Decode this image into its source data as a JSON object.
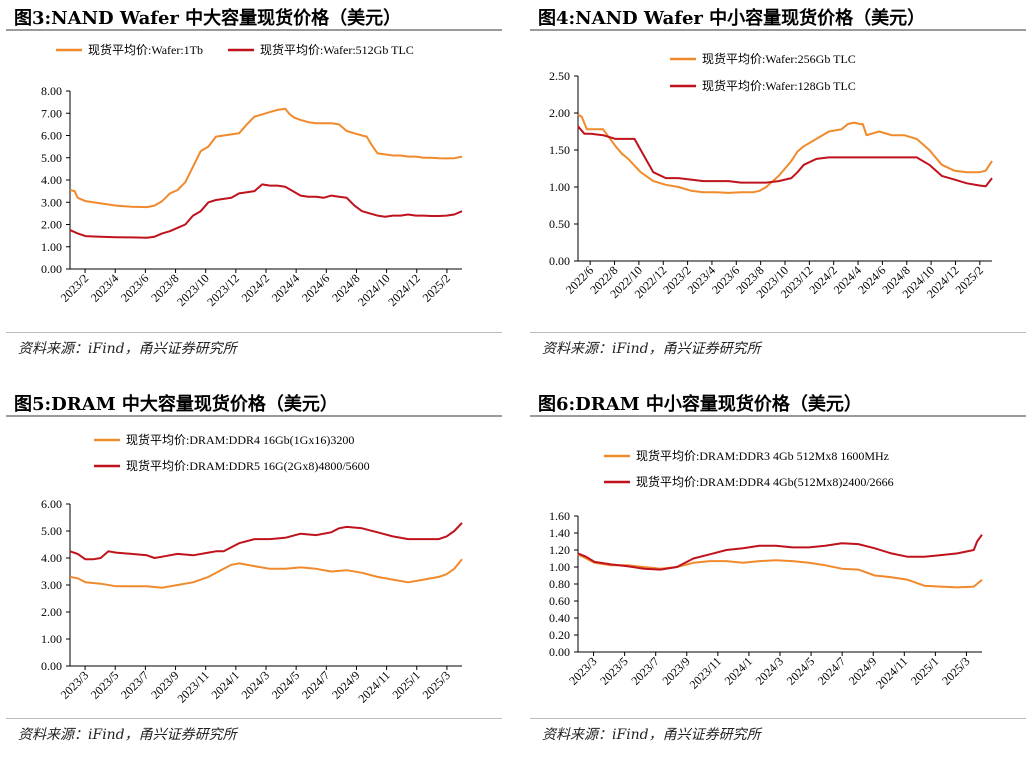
{
  "colors": {
    "orange": "#f08a2c",
    "red": "#c0121c",
    "axis": "#000000"
  },
  "chart_data": [
    {
      "type": "line",
      "title": "图3:NAND Wafer 中大容量现货价格（美元）",
      "source": "资料来源：iFind，甬兴证券研究所",
      "x_ticks": [
        "2023/2",
        "2023/4",
        "2023/6",
        "2023/8",
        "2023/10",
        "2023/12",
        "2024/2",
        "2024/4",
        "2024/6",
        "2024/8",
        "2024/10",
        "2024/12",
        "2025/2"
      ],
      "x_range": [
        0,
        25.5
      ],
      "ylim": [
        0,
        8
      ],
      "y_ticks": [
        "0.00",
        "1.00",
        "2.00",
        "3.00",
        "4.00",
        "5.00",
        "6.00",
        "7.00",
        "8.00"
      ],
      "legend_layout": "row",
      "series": [
        {
          "name": "现货平均价:Wafer:1Tb",
          "color": "#f08a2c",
          "x": [
            0,
            0.3,
            0.5,
            1,
            2,
            3,
            4,
            5,
            5.5,
            6,
            6.5,
            7,
            7.5,
            8,
            8.5,
            9,
            9.5,
            10,
            10.5,
            11,
            11.5,
            12,
            12.5,
            13,
            13.5,
            14,
            14.3,
            14.6,
            15,
            15.5,
            16,
            16.5,
            17,
            17.5,
            18,
            18.5,
            19,
            19.3,
            19.6,
            20,
            20.5,
            21,
            21.5,
            22,
            22.5,
            23,
            23.5,
            24,
            24.5,
            25,
            25.5
          ],
          "values": [
            3.55,
            3.5,
            3.2,
            3.05,
            2.95,
            2.85,
            2.8,
            2.78,
            2.85,
            3.05,
            3.4,
            3.55,
            3.9,
            4.6,
            5.3,
            5.5,
            5.95,
            6.0,
            6.05,
            6.1,
            6.5,
            6.85,
            6.95,
            7.05,
            7.15,
            7.2,
            6.95,
            6.8,
            6.7,
            6.6,
            6.55,
            6.55,
            6.55,
            6.5,
            6.2,
            6.1,
            6.0,
            5.95,
            5.6,
            5.2,
            5.15,
            5.1,
            5.1,
            5.05,
            5.05,
            5.0,
            5.0,
            4.98,
            4.97,
            4.98,
            5.05
          ]
        },
        {
          "name": "现货平均价:Wafer:512Gb TLC",
          "color": "#c0121c",
          "x": [
            0,
            0.5,
            1,
            2,
            3,
            4,
            5,
            5.5,
            6,
            6.5,
            7,
            7.5,
            8,
            8.5,
            9,
            9.5,
            10,
            10.5,
            11,
            11.5,
            12,
            12.5,
            13,
            13.5,
            14,
            14.5,
            15,
            15.5,
            16,
            16.5,
            17,
            17.5,
            18,
            18.5,
            19,
            19.5,
            20,
            20.5,
            21,
            21.5,
            22,
            22.5,
            23,
            23.5,
            24,
            24.5,
            25,
            25.5
          ],
          "values": [
            1.75,
            1.6,
            1.48,
            1.45,
            1.43,
            1.42,
            1.4,
            1.45,
            1.6,
            1.7,
            1.85,
            2.0,
            2.4,
            2.6,
            3.0,
            3.1,
            3.15,
            3.2,
            3.4,
            3.45,
            3.5,
            3.8,
            3.75,
            3.75,
            3.7,
            3.5,
            3.3,
            3.25,
            3.25,
            3.2,
            3.3,
            3.25,
            3.2,
            2.85,
            2.6,
            2.5,
            2.4,
            2.35,
            2.4,
            2.4,
            2.45,
            2.4,
            2.4,
            2.38,
            2.38,
            2.4,
            2.45,
            2.6
          ]
        }
      ]
    },
    {
      "type": "line",
      "title": "图4:NAND Wafer 中小容量现货价格（美元）",
      "source": "资料来源：iFind，甬兴证券研究所",
      "x_ticks": [
        "2022/6",
        "2022/8",
        "2022/10",
        "2022/12",
        "2023/2",
        "2023/4",
        "2023/6",
        "2023/8",
        "2023/10",
        "2023/12",
        "2024/2",
        "2024/4",
        "2024/6",
        "2024/8",
        "2024/10",
        "2024/12",
        "2025/2"
      ],
      "x_range": [
        0,
        33
      ],
      "ylim": [
        0,
        2.5
      ],
      "y_ticks": [
        "0.00",
        "0.50",
        "1.00",
        "1.50",
        "2.00",
        "2.50"
      ],
      "legend_layout": "stack",
      "series": [
        {
          "name": "现货平均价:Wafer:256Gb TLC",
          "color": "#f08a2c",
          "x": [
            0,
            0.3,
            0.7,
            1,
            2,
            3,
            3.5,
            4,
            5,
            6,
            7,
            8,
            9,
            10,
            11,
            12,
            13,
            14,
            14.5,
            15,
            16,
            17,
            17.5,
            18,
            19,
            20,
            21,
            21.5,
            22,
            22.5,
            22.7,
            23,
            24,
            25,
            26,
            27,
            28,
            29,
            30,
            31,
            32,
            32.5,
            33
          ],
          "values": [
            1.98,
            1.95,
            1.78,
            1.78,
            1.78,
            1.55,
            1.45,
            1.38,
            1.2,
            1.08,
            1.03,
            1.0,
            0.95,
            0.93,
            0.93,
            0.92,
            0.93,
            0.93,
            0.95,
            1.0,
            1.15,
            1.35,
            1.48,
            1.55,
            1.65,
            1.75,
            1.78,
            1.85,
            1.87,
            1.85,
            1.85,
            1.7,
            1.75,
            1.7,
            1.7,
            1.65,
            1.5,
            1.3,
            1.22,
            1.2,
            1.2,
            1.22,
            1.35
          ]
        },
        {
          "name": "现货平均价:Wafer:128Gb TLC",
          "color": "#c0121c",
          "x": [
            0,
            0.5,
            1,
            2,
            3,
            4,
            4.5,
            5,
            6,
            7,
            8,
            9,
            10,
            11,
            12,
            13,
            14,
            15,
            16,
            17,
            17.5,
            18,
            19,
            20,
            21,
            22,
            23,
            24,
            25,
            26,
            27,
            28,
            29,
            30,
            31,
            32,
            32.5,
            33
          ],
          "values": [
            1.82,
            1.72,
            1.72,
            1.7,
            1.65,
            1.65,
            1.65,
            1.5,
            1.2,
            1.12,
            1.12,
            1.1,
            1.08,
            1.08,
            1.08,
            1.06,
            1.06,
            1.06,
            1.08,
            1.12,
            1.2,
            1.3,
            1.38,
            1.4,
            1.4,
            1.4,
            1.4,
            1.4,
            1.4,
            1.4,
            1.4,
            1.3,
            1.15,
            1.1,
            1.05,
            1.02,
            1.01,
            1.12
          ]
        }
      ]
    },
    {
      "type": "line",
      "title": "图5:DRAM 中大容量现货价格（美元）",
      "source": "资料来源：iFind，甬兴证券研究所",
      "x_ticks": [
        "2023/3",
        "2023/5",
        "2023/7",
        "2023/9",
        "2023/11",
        "2024/1",
        "2024/3",
        "2024/5",
        "2024/7",
        "2024/9",
        "2024/11",
        "2025/1",
        "2025/3"
      ],
      "x_range": [
        0,
        25.5
      ],
      "ylim": [
        0,
        6
      ],
      "y_ticks": [
        "0.00",
        "1.00",
        "2.00",
        "3.00",
        "4.00",
        "5.00",
        "6.00"
      ],
      "legend_layout": "stack",
      "series": [
        {
          "name": "现货平均价:DRAM:DDR4 16Gb(1Gx16)3200",
          "color": "#f08a2c",
          "x": [
            0,
            0.5,
            1,
            2,
            3,
            4,
            5,
            6,
            7,
            8,
            9,
            10,
            10.5,
            11,
            12,
            13,
            14,
            15,
            16,
            17,
            18,
            19,
            20,
            21,
            22,
            23,
            24,
            24.5,
            25,
            25.5
          ],
          "values": [
            3.3,
            3.25,
            3.1,
            3.05,
            2.95,
            2.95,
            2.95,
            2.9,
            3.0,
            3.1,
            3.3,
            3.6,
            3.75,
            3.8,
            3.7,
            3.6,
            3.6,
            3.65,
            3.6,
            3.5,
            3.55,
            3.45,
            3.3,
            3.2,
            3.1,
            3.2,
            3.3,
            3.4,
            3.6,
            3.95
          ]
        },
        {
          "name": "现货平均价:DRAM:DDR5 16G(2Gx8)4800/5600",
          "color": "#c0121c",
          "x": [
            0,
            0.5,
            1,
            1.5,
            2,
            2.5,
            3,
            4,
            5,
            5.5,
            6,
            7,
            8,
            9,
            9.5,
            10,
            11,
            12,
            13,
            14,
            15,
            16,
            17,
            17.5,
            18,
            19,
            20,
            21,
            22,
            23,
            24,
            24.5,
            25,
            25.5
          ],
          "values": [
            4.25,
            4.15,
            3.95,
            3.95,
            4.0,
            4.25,
            4.2,
            4.15,
            4.1,
            4.0,
            4.05,
            4.15,
            4.1,
            4.2,
            4.25,
            4.25,
            4.55,
            4.7,
            4.7,
            4.75,
            4.9,
            4.85,
            4.95,
            5.1,
            5.15,
            5.1,
            4.95,
            4.8,
            4.7,
            4.7,
            4.7,
            4.8,
            5.0,
            5.3
          ]
        }
      ]
    },
    {
      "type": "line",
      "title": "图6:DRAM 中小容量现货价格（美元）",
      "source": "资料来源：iFind，甬兴证券研究所",
      "x_ticks": [
        "2023/3",
        "2023/5",
        "2023/7",
        "2023/9",
        "2023/11",
        "2024/1",
        "2024/3",
        "2024/5",
        "2024/7",
        "2024/9",
        "2024/11",
        "2025/1",
        "2025/3"
      ],
      "x_range": [
        0,
        24.5
      ],
      "ylim": [
        0,
        1.6
      ],
      "y_ticks": [
        "0.00",
        "0.20",
        "0.40",
        "0.60",
        "0.80",
        "1.00",
        "1.20",
        "1.40",
        "1.60"
      ],
      "legend_layout": "stack",
      "series": [
        {
          "name": "现货平均价:DRAM:DDR3 4Gb 512Mx8 1600MHz",
          "color": "#f08a2c",
          "x": [
            0,
            0.5,
            1,
            2,
            3,
            4,
            5,
            6,
            7,
            8,
            9,
            10,
            11,
            12,
            13,
            14,
            15,
            16,
            17,
            18,
            19,
            20,
            21,
            22,
            23,
            24,
            24.5
          ],
          "values": [
            1.15,
            1.1,
            1.05,
            1.02,
            1.02,
            1.0,
            0.98,
            1.0,
            1.05,
            1.07,
            1.07,
            1.05,
            1.07,
            1.08,
            1.07,
            1.05,
            1.02,
            0.98,
            0.97,
            0.9,
            0.88,
            0.85,
            0.78,
            0.77,
            0.76,
            0.77,
            0.85
          ]
        },
        {
          "name": "现货平均价:DRAM:DDR4 4Gb(512Mx8)2400/2666",
          "color": "#c0121c",
          "x": [
            0,
            0.5,
            1,
            2,
            3,
            4,
            5,
            6,
            7,
            8,
            9,
            10,
            11,
            12,
            13,
            14,
            15,
            16,
            17,
            18,
            19,
            20,
            21,
            22,
            23,
            24,
            24.2,
            24.5
          ],
          "values": [
            1.16,
            1.12,
            1.06,
            1.03,
            1.01,
            0.98,
            0.97,
            1.0,
            1.1,
            1.15,
            1.2,
            1.22,
            1.25,
            1.25,
            1.23,
            1.23,
            1.25,
            1.28,
            1.27,
            1.22,
            1.16,
            1.12,
            1.12,
            1.14,
            1.16,
            1.2,
            1.3,
            1.38
          ]
        }
      ]
    }
  ]
}
